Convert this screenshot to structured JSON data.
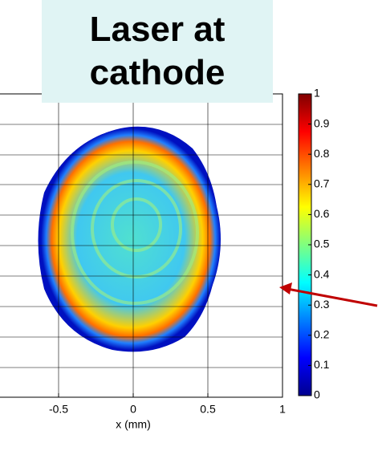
{
  "chart_data": {
    "type": "heatmap",
    "title": "Laser at cathode",
    "xlabel": "x (mm)",
    "xlim": [
      -1,
      1
    ],
    "xticks": [
      -0.5,
      0,
      0.5,
      1
    ],
    "grid": true,
    "colorbar": {
      "lim": [
        0,
        1
      ],
      "ticks": [
        0,
        0.1,
        0.2,
        0.3,
        0.4,
        0.5,
        0.6,
        0.7,
        0.8,
        0.9,
        1
      ]
    }
  }
}
